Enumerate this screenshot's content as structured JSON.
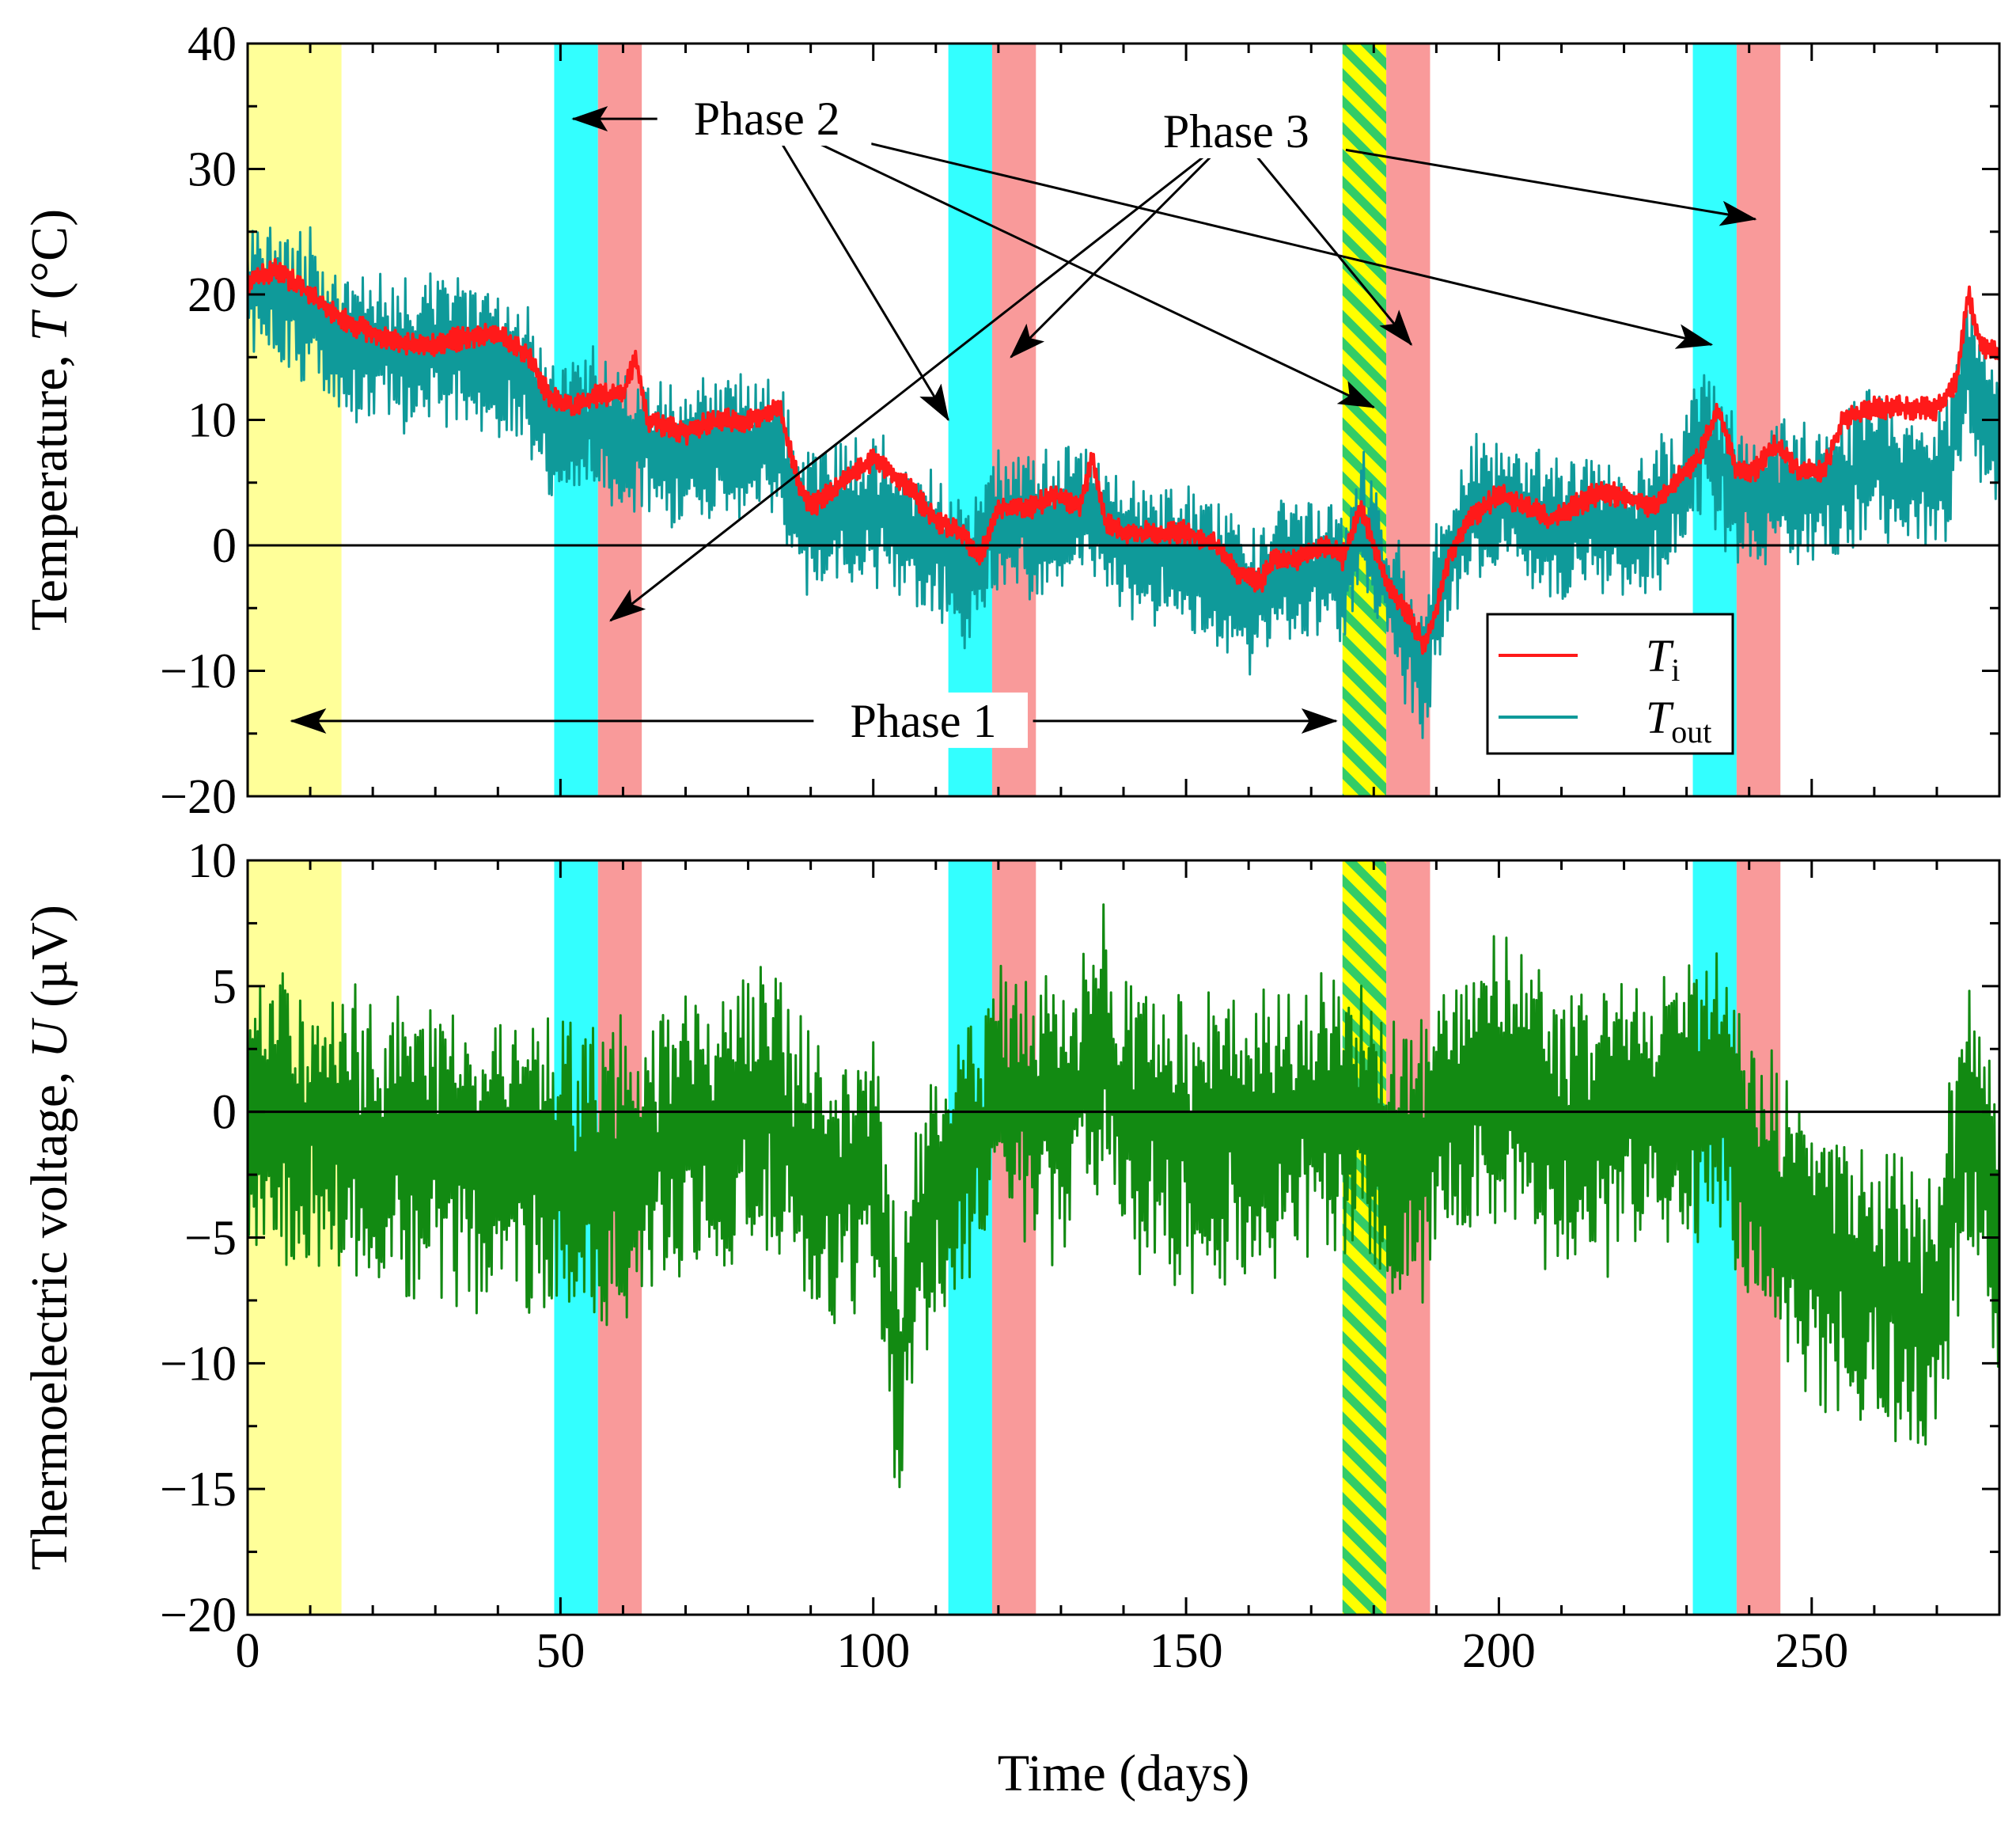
{
  "chart_data": {
    "type": "line",
    "xlabel": "Time (days)",
    "xlim": [
      0,
      280
    ],
    "xticks": [
      {
        "v": 0,
        "label": "0"
      },
      {
        "v": 50,
        "label": "50"
      },
      {
        "v": 100,
        "label": "100"
      },
      {
        "v": 150,
        "label": "150"
      },
      {
        "v": 200,
        "label": "200"
      },
      {
        "v": 250,
        "label": "250"
      }
    ],
    "shaded_periods": [
      {
        "kind": "yellow",
        "color": "#ffff99",
        "start": 0,
        "end": 15
      },
      {
        "kind": "cyan",
        "color": "#33ffff",
        "start": 49,
        "end": 56
      },
      {
        "kind": "salmon",
        "color": "#f99a9a",
        "start": 56,
        "end": 63
      },
      {
        "kind": "cyan",
        "color": "#33ffff",
        "start": 112,
        "end": 119
      },
      {
        "kind": "salmon",
        "color": "#f99a9a",
        "start": 119,
        "end": 126
      },
      {
        "kind": "hatched",
        "color": "#ffff00",
        "stripe": "#33cc66",
        "start": 175,
        "end": 182
      },
      {
        "kind": "salmon",
        "color": "#f99a9a",
        "start": 182,
        "end": 189
      },
      {
        "kind": "cyan",
        "color": "#33ffff",
        "start": 231,
        "end": 238
      },
      {
        "kind": "salmon",
        "color": "#f99a9a",
        "start": 238,
        "end": 245
      }
    ],
    "panels": [
      {
        "id": "temperature",
        "ylabel_main": "Temperature, ",
        "ylabel_sym": "T",
        "ylabel_unit": " (°C)",
        "ylim": [
          -20,
          40
        ],
        "yticks": [
          {
            "v": 40,
            "label": "40"
          },
          {
            "v": 30,
            "label": "30"
          },
          {
            "v": 20,
            "label": "20"
          },
          {
            "v": 10,
            "label": "10"
          },
          {
            "v": 0,
            "label": "0"
          },
          {
            "v": -10,
            "label": "−10"
          },
          {
            "v": -20,
            "label": "−20"
          }
        ],
        "series": [
          {
            "name": "T_out",
            "color": "#0f9a9a",
            "amplitude": 5.5,
            "baseline": [
              [
                0,
                21
              ],
              [
                10,
                19
              ],
              [
                15,
                16
              ],
              [
                25,
                15
              ],
              [
                35,
                16
              ],
              [
                45,
                13
              ],
              [
                49,
                9
              ],
              [
                56,
                10
              ],
              [
                63,
                8
              ],
              [
                70,
                7
              ],
              [
                80,
                8
              ],
              [
                85,
                8
              ],
              [
                88,
                2
              ],
              [
                100,
                3
              ],
              [
                105,
                1
              ],
              [
                110,
                0
              ],
              [
                115,
                -2
              ],
              [
                119,
                1
              ],
              [
                126,
                2
              ],
              [
                130,
                2
              ],
              [
                135,
                3
              ],
              [
                140,
                0
              ],
              [
                150,
                -1
              ],
              [
                158,
                -3
              ],
              [
                160,
                -5
              ],
              [
                165,
                -2
              ],
              [
                170,
                -2
              ],
              [
                175,
                -2
              ],
              [
                178,
                2
              ],
              [
                182,
                -3
              ],
              [
                186,
                -8
              ],
              [
                188,
                -11
              ],
              [
                190,
                -4
              ],
              [
                195,
                3
              ],
              [
                200,
                3
              ],
              [
                210,
                1
              ],
              [
                215,
                2
              ],
              [
                220,
                1
              ],
              [
                225,
                2
              ],
              [
                230,
                5
              ],
              [
                233,
                9
              ],
              [
                238,
                4
              ],
              [
                245,
                4
              ],
              [
                250,
                4
              ],
              [
                255,
                5
              ],
              [
                260,
                7
              ],
              [
                265,
                5
              ],
              [
                270,
                5
              ],
              [
                272,
                7
              ],
              [
                275,
                15
              ],
              [
                278,
                9
              ],
              [
                280,
                8
              ]
            ]
          },
          {
            "name": "T_i",
            "color": "#ff1a1a",
            "amplitude": 0.9,
            "baseline": [
              [
                0,
                21
              ],
              [
                5,
                22
              ],
              [
                10,
                20
              ],
              [
                15,
                18
              ],
              [
                25,
                16
              ],
              [
                30,
                16
              ],
              [
                40,
                17
              ],
              [
                45,
                15
              ],
              [
                48,
                12
              ],
              [
                52,
                11
              ],
              [
                56,
                12
              ],
              [
                60,
                12
              ],
              [
                62,
                15
              ],
              [
                64,
                10
              ],
              [
                70,
                9
              ],
              [
                75,
                10
              ],
              [
                80,
                10
              ],
              [
                85,
                11
              ],
              [
                88,
                5
              ],
              [
                90,
                3
              ],
              [
                95,
                5
              ],
              [
                100,
                7
              ],
              [
                105,
                5
              ],
              [
                110,
                2
              ],
              [
                114,
                1
              ],
              [
                117,
                -1
              ],
              [
                120,
                3
              ],
              [
                125,
                3
              ],
              [
                130,
                4
              ],
              [
                133,
                3
              ],
              [
                135,
                7
              ],
              [
                137,
                2
              ],
              [
                140,
                1
              ],
              [
                145,
                1
              ],
              [
                150,
                1
              ],
              [
                155,
                0
              ],
              [
                158,
                -2
              ],
              [
                162,
                -3
              ],
              [
                164,
                -1
              ],
              [
                168,
                -1
              ],
              [
                172,
                0
              ],
              [
                175,
                -1
              ],
              [
                178,
                3
              ],
              [
                182,
                -3
              ],
              [
                186,
                -6
              ],
              [
                188,
                -8
              ],
              [
                190,
                -5
              ],
              [
                192,
                -1
              ],
              [
                195,
                2
              ],
              [
                200,
                4
              ],
              [
                205,
                3
              ],
              [
                208,
                2
              ],
              [
                212,
                3
              ],
              [
                215,
                4
              ],
              [
                220,
                4
              ],
              [
                225,
                3
              ],
              [
                228,
                5
              ],
              [
                232,
                7
              ],
              [
                235,
                11
              ],
              [
                238,
                6
              ],
              [
                241,
                6
              ],
              [
                244,
                8
              ],
              [
                248,
                6
              ],
              [
                252,
                6
              ],
              [
                255,
                10
              ],
              [
                260,
                11
              ],
              [
                265,
                11
              ],
              [
                270,
                11
              ],
              [
                273,
                13
              ],
              [
                275,
                20
              ],
              [
                277,
                16
              ],
              [
                280,
                15
              ]
            ]
          }
        ],
        "legend": [
          {
            "key": "T_i",
            "sym": "T",
            "sub": "i",
            "color": "#ff1a1a"
          },
          {
            "key": "T_out",
            "sym": "T",
            "sub": "out",
            "color": "#0f9a9a"
          }
        ],
        "annotations": [
          {
            "text": "Phase 2",
            "anchor": [
              83,
              34
            ],
            "targets": [
              [
                52,
                34
              ],
              [
                112,
                10
              ],
              [
                180,
                11
              ],
              [
                234,
                16
              ]
            ]
          },
          {
            "text": "Phase 3",
            "anchor": [
              158,
              33
            ],
            "targets": [
              [
                58,
                -6
              ],
              [
                122,
                15
              ],
              [
                186,
                16
              ],
              [
                241,
                26
              ]
            ]
          },
          {
            "text": "Phase 1",
            "anchor": [
              108,
              -14
            ],
            "targets": [
              [
                7,
                -14
              ],
              [
                174,
                -14
              ]
            ]
          }
        ]
      },
      {
        "id": "voltage",
        "ylabel_main": "Thermoelectric voltage, ",
        "ylabel_sym": "U",
        "ylabel_unit": " (µV)",
        "ylim": [
          -20,
          10
        ],
        "yticks": [
          {
            "v": 10,
            "label": "10"
          },
          {
            "v": 5,
            "label": "5"
          },
          {
            "v": 0,
            "label": "0"
          },
          {
            "v": -5,
            "label": "−5"
          },
          {
            "v": -10,
            "label": "−10"
          },
          {
            "v": -15,
            "label": "−15"
          },
          {
            "v": -20,
            "label": "−20"
          }
        ],
        "series": [
          {
            "name": "U",
            "color": "#128a12",
            "amplitude": 5.5,
            "baseline": [
              [
                0,
                0
              ],
              [
                15,
                -1
              ],
              [
                40,
                -2
              ],
              [
                49,
                -2
              ],
              [
                55,
                -3
              ],
              [
                70,
                -1
              ],
              [
                85,
                0
              ],
              [
                90,
                -3
              ],
              [
                100,
                -2
              ],
              [
                104,
                -11
              ],
              [
                106,
                -6
              ],
              [
                110,
                -3
              ],
              [
                116,
                -2
              ],
              [
                119,
                1
              ],
              [
                125,
                0
              ],
              [
                132,
                0
              ],
              [
                136,
                3
              ],
              [
                140,
                0
              ],
              [
                150,
                -1
              ],
              [
                160,
                -1
              ],
              [
                170,
                0
              ],
              [
                178,
                0
              ],
              [
                182,
                -2
              ],
              [
                186,
                -3
              ],
              [
                190,
                0
              ],
              [
                200,
                1
              ],
              [
                210,
                -1
              ],
              [
                220,
                0
              ],
              [
                230,
                0
              ],
              [
                235,
                1
              ],
              [
                240,
                -3
              ],
              [
                245,
                -4
              ],
              [
                250,
                -6
              ],
              [
                260,
                -7
              ],
              [
                270,
                -8
              ],
              [
                273,
                -3
              ],
              [
                276,
                0
              ],
              [
                280,
                -5
              ]
            ]
          }
        ]
      }
    ]
  }
}
